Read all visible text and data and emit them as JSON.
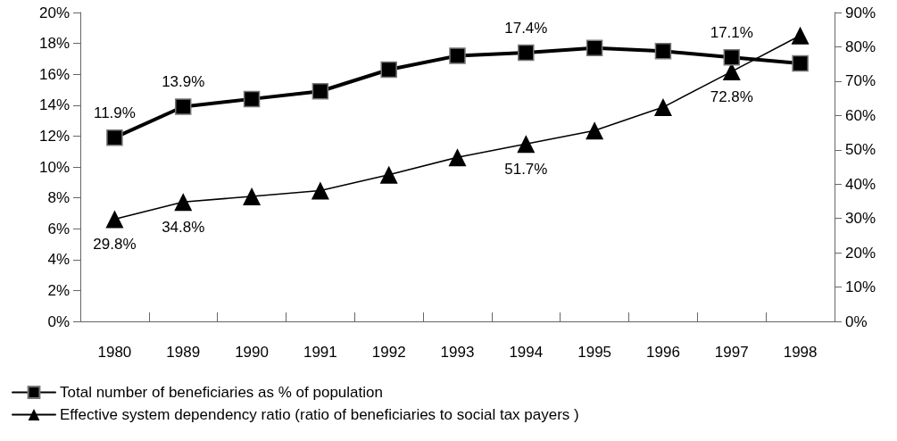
{
  "chart_data": {
    "type": "line",
    "categories": [
      "1980",
      "1989",
      "1990",
      "1991",
      "1992",
      "1993",
      "1994",
      "1995",
      "1996",
      "1997",
      "1998"
    ],
    "series": [
      {
        "name": "Total number of beneficiaries as % of population",
        "color": "#000000",
        "marker": "square",
        "values": [
          11.9,
          13.9,
          14.4,
          14.9,
          16.3,
          17.2,
          17.4,
          17.7,
          17.5,
          17.1,
          16.7
        ],
        "value_labels": [
          "11.9%",
          "13.9%",
          null,
          null,
          null,
          null,
          "17.4%",
          null,
          null,
          "17.1%",
          null
        ]
      },
      {
        "name": "Effective system dependency ratio (ratio of beneficiaries to social tax payers )",
        "color": "#000000",
        "marker": "triangle",
        "axis": "y2",
        "values": [
          29.8,
          34.8,
          36.4,
          38.1,
          42.7,
          47.8,
          51.7,
          55.6,
          62.4,
          72.8,
          83.3
        ],
        "value_labels": [
          "29.8%",
          "34.8%",
          null,
          null,
          null,
          null,
          "51.7%",
          null,
          null,
          "72.8%",
          null
        ]
      }
    ],
    "ylim": [
      0,
      20
    ],
    "yticks": [
      {
        "value": 0,
        "label": "0%"
      },
      {
        "value": 2,
        "label": "2%"
      },
      {
        "value": 4,
        "label": "4%"
      },
      {
        "value": 6,
        "label": "6%"
      },
      {
        "value": 8,
        "label": "8%"
      },
      {
        "value": 10,
        "label": "10%"
      },
      {
        "value": 12,
        "label": "12%"
      },
      {
        "value": 14,
        "label": "14%"
      },
      {
        "value": 16,
        "label": "16%"
      },
      {
        "value": 18,
        "label": "18%"
      },
      {
        "value": 20,
        "label": "20%"
      }
    ],
    "y2lim": [
      0,
      90
    ],
    "y2ticks": [
      {
        "value": 0,
        "label": "0%"
      },
      {
        "value": 10,
        "label": "10%"
      },
      {
        "value": 20,
        "label": "20%"
      },
      {
        "value": 30,
        "label": "30%"
      },
      {
        "value": 40,
        "label": "40%"
      },
      {
        "value": 50,
        "label": "50%"
      },
      {
        "value": 60,
        "label": "60%"
      },
      {
        "value": 70,
        "label": "70%"
      },
      {
        "value": 80,
        "label": "80%"
      },
      {
        "value": 90,
        "label": "90%"
      }
    ],
    "grid": false,
    "legend": "bottom left",
    "line_style": "solid"
  }
}
